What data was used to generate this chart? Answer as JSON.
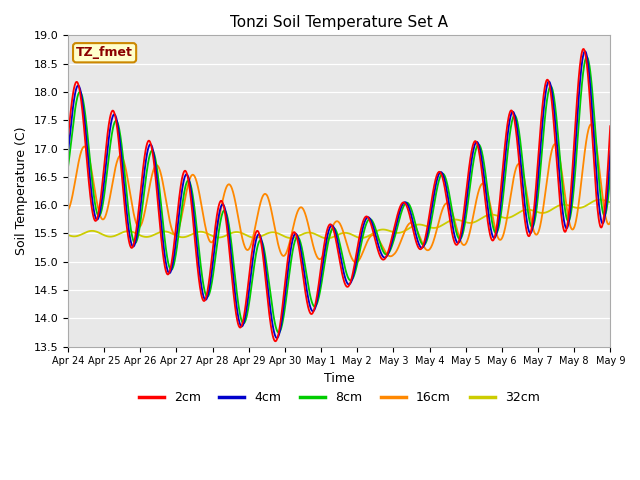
{
  "title": "Tonzi Soil Temperature Set A",
  "xlabel": "Time",
  "ylabel": "Soil Temperature (C)",
  "ylim": [
    13.5,
    19.0
  ],
  "legend_label": "TZ_fmet",
  "series_labels": [
    "2cm",
    "4cm",
    "8cm",
    "16cm",
    "32cm"
  ],
  "series_colors": [
    "#ff0000",
    "#0000cc",
    "#00cc00",
    "#ff8800",
    "#cccc00"
  ],
  "bg_color": "#ffffff",
  "plot_bg_color": "#e8e8e8",
  "x_tick_labels": [
    "Apr 24",
    "Apr 25",
    "Apr 26",
    "Apr 27",
    "Apr 28",
    "Apr 29",
    "Apr 30",
    "May 1",
    "May 2",
    "May 3",
    "May 4",
    "May 5",
    "May 6",
    "May 7",
    "May 8",
    "May 9"
  ],
  "n_days": 15
}
